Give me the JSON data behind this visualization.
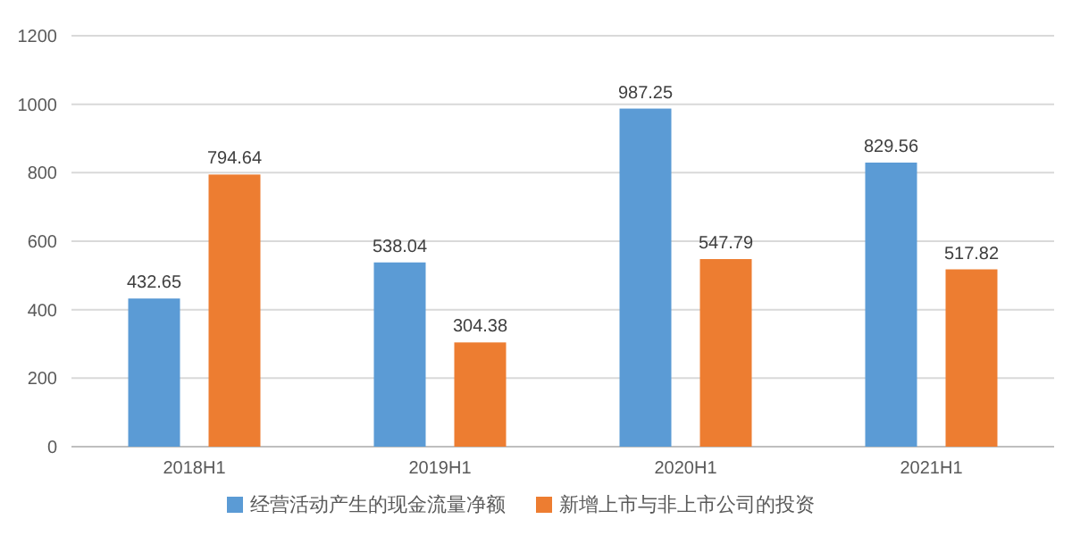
{
  "chart_data": {
    "type": "bar",
    "categories": [
      "2018H1",
      "2019H1",
      "2020H1",
      "2021H1"
    ],
    "series": [
      {
        "name": "经营活动产生的现金流量净额",
        "color": "#5b9bd5",
        "values": [
          432.65,
          538.04,
          987.25,
          829.56
        ]
      },
      {
        "name": "新增上市与非上市公司的投资",
        "color": "#ed7d31",
        "values": [
          794.64,
          304.38,
          547.79,
          517.82
        ]
      }
    ],
    "ylim": [
      0,
      1200
    ],
    "yticks": [
      0,
      200,
      400,
      600,
      800,
      1000,
      1200
    ],
    "grid": "y",
    "legend": "bottom",
    "data_labels": true
  }
}
